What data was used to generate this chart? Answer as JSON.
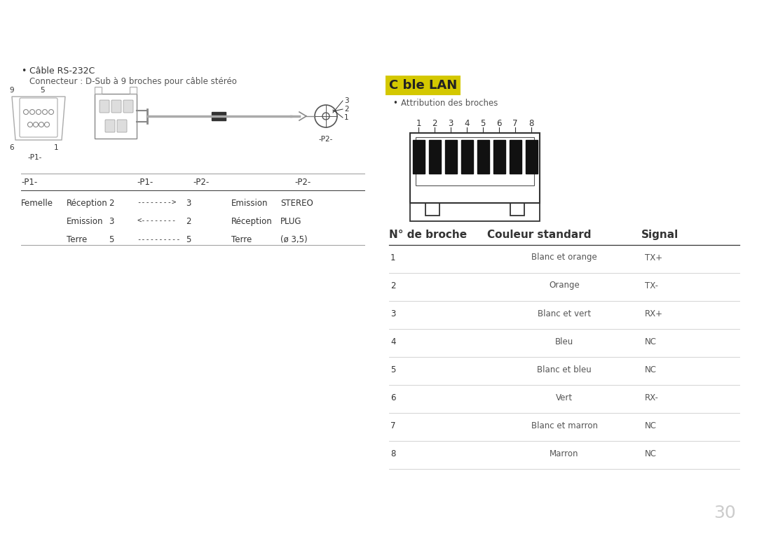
{
  "bg_color": "#ffffff",
  "title_highlight_color": "#d4c800",
  "title_text": "C ble LAN",
  "subtitle_attribution": "Attribution des broches",
  "left_bullet_title": "Câble RS-232C",
  "left_bullet_subtitle": "Connecteur : D-Sub à 9 broches pour câble stéréo",
  "table_headers": [
    "N° de broche",
    "Couleur standard",
    "Signal"
  ],
  "table_rows": [
    [
      "1",
      "Blanc et orange",
      "TX+"
    ],
    [
      "2",
      "Orange",
      "TX-"
    ],
    [
      "3",
      "Blanc et vert",
      "RX+"
    ],
    [
      "4",
      "Bleu",
      "NC"
    ],
    [
      "5",
      "Blanc et bleu",
      "NC"
    ],
    [
      "6",
      "Vert",
      "RX-"
    ],
    [
      "7",
      "Blanc et marron",
      "NC"
    ],
    [
      "8",
      "Marron",
      "NC"
    ]
  ],
  "p1_table_rows": [
    [
      "Femelle",
      "Réception",
      "2",
      "-------->",
      "3",
      "Emission",
      "STEREO"
    ],
    [
      "",
      "Emission",
      "3",
      "<--------",
      "2",
      "Réception",
      "PLUG"
    ],
    [
      "",
      "Terre",
      "5",
      "----------",
      "5",
      "Terre",
      "(ø 3,5)"
    ]
  ],
  "page_number": "30",
  "text_color": "#333333",
  "light_text_color": "#888888",
  "mid_text_color": "#555555",
  "line_color_dark": "#333333",
  "line_color_light": "#cccccc",
  "line_color_mid": "#999999"
}
